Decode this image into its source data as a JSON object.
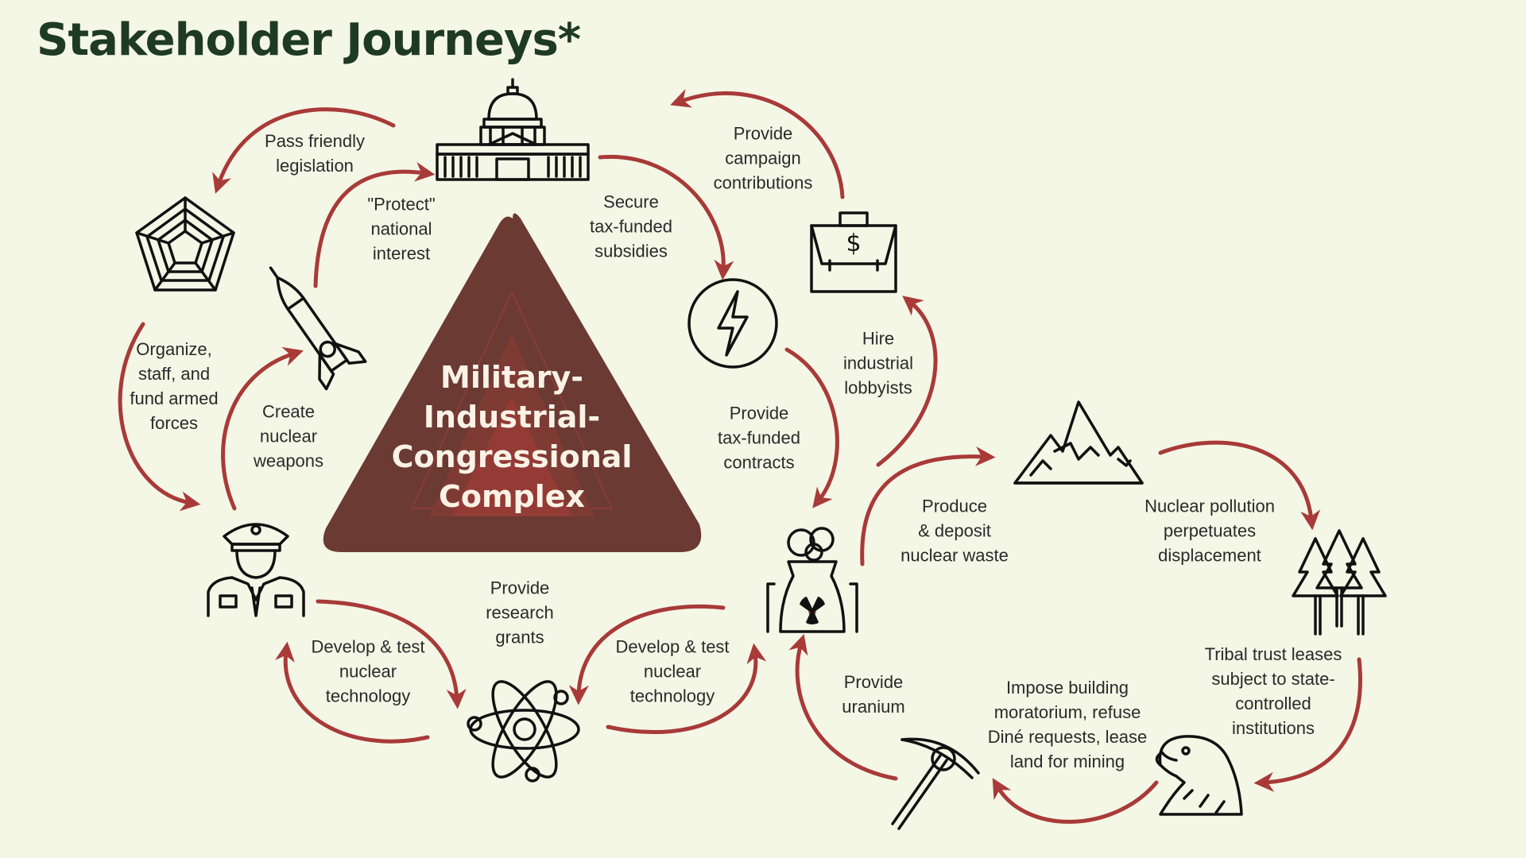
{
  "title": "Stakeholder Journeys*",
  "center": {
    "line1": "Military-",
    "line2": "Industrial-",
    "line3": "Congressional",
    "line4": "Complex"
  },
  "colors": {
    "background": "#f4f6e6",
    "arrow": "#a83a38",
    "triangle": "#6b3a33",
    "title": "#1f3a23"
  },
  "icons": [
    "capitol-icon",
    "pentagon-icon",
    "missile-icon",
    "military-officer-icon",
    "atom-icon",
    "lightning-icon",
    "briefcase-money-icon",
    "nuclear-plant-icon",
    "mountains-icon",
    "pine-trees-icon",
    "eagle-icon",
    "pickaxe-icon"
  ],
  "labels": {
    "pass_friendly": [
      "Pass friendly",
      "legislation"
    ],
    "protect": [
      "\"Protect\"",
      "national",
      "interest"
    ],
    "secure": [
      "Secure",
      "tax-funded",
      "subsidies"
    ],
    "campaign": [
      "Provide",
      "campaign",
      "contributions"
    ],
    "organize": [
      "Organize,",
      "staff, and",
      "fund armed",
      "forces"
    ],
    "create": [
      "Create",
      "nuclear",
      "weapons"
    ],
    "hire": [
      "Hire",
      "industrial",
      "lobbyists"
    ],
    "contracts": [
      "Provide",
      "tax-funded",
      "contracts"
    ],
    "produce": [
      "Produce",
      "& deposit",
      "nuclear waste"
    ],
    "pollution": [
      "Nuclear pollution",
      "perpetuates",
      "displacement"
    ],
    "research": [
      "Provide",
      "research",
      "grants"
    ],
    "develop_left": [
      "Develop & test",
      "nuclear",
      "technology"
    ],
    "develop_right": [
      "Develop & test",
      "nuclear",
      "technology"
    ],
    "uranium": [
      "Provide",
      "uranium"
    ],
    "impose": [
      "Impose building",
      "moratorium, refuse",
      "Diné requests, lease",
      "land for mining"
    ],
    "tribal": [
      "Tribal trust leases",
      "subject to state-",
      "controlled",
      "institutions"
    ]
  }
}
